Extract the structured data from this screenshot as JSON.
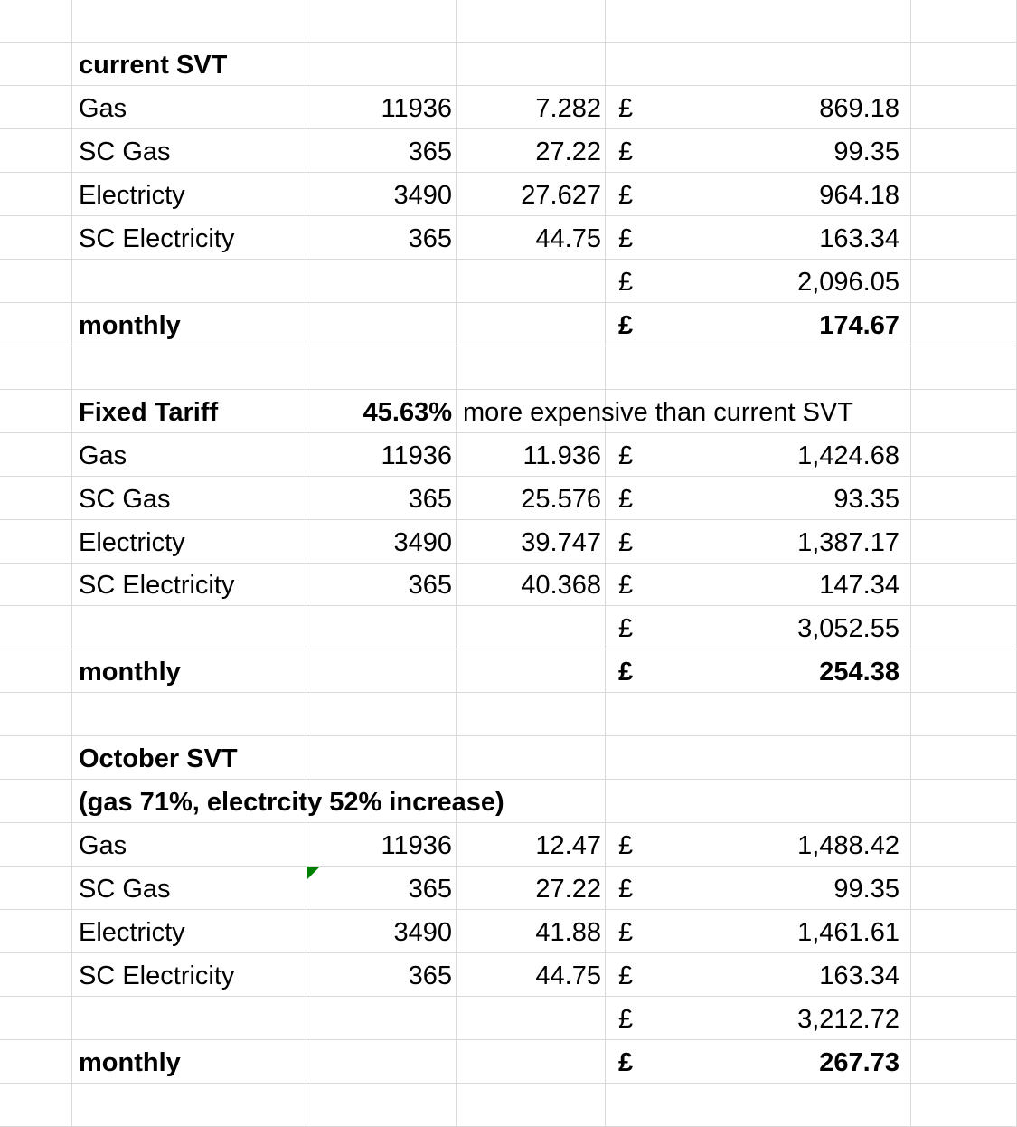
{
  "sheet": {
    "flag_color": "#008000",
    "rows": [
      {},
      {
        "label": "current SVT",
        "bold": true
      },
      {
        "label": "Gas",
        "qty": "11936",
        "rate": "7.282",
        "cur": "£",
        "amount": "869.18"
      },
      {
        "label": "SC Gas",
        "qty": "365",
        "rate": "27.22",
        "cur": "£",
        "amount": "99.35"
      },
      {
        "label": "Electricty",
        "qty": "3490",
        "rate": "27.627",
        "cur": "£",
        "amount": "964.18"
      },
      {
        "label": "SC Electricity",
        "qty": "365",
        "rate": "44.75",
        "cur": "£",
        "amount": "163.34"
      },
      {
        "cur": "£",
        "amount": "2,096.05"
      },
      {
        "label": "monthly",
        "cur": "£",
        "amount": "174.67",
        "bold": true
      },
      {},
      {
        "label": "Fixed Tariff",
        "bold": true,
        "qty": "45.63%",
        "note": "more expensive than current SVT"
      },
      {
        "label": "Gas",
        "qty": "11936",
        "rate": "11.936",
        "cur": "£",
        "amount": "1,424.68"
      },
      {
        "label": "SC Gas",
        "qty": "365",
        "rate": "25.576",
        "cur": "£",
        "amount": "93.35"
      },
      {
        "label": "Electricty",
        "qty": "3490",
        "rate": "39.747",
        "cur": "£",
        "amount": "1,387.17"
      },
      {
        "label": "SC Electricity",
        "qty": "365",
        "rate": "40.368",
        "cur": "£",
        "amount": "147.34"
      },
      {
        "cur": "£",
        "amount": "3,052.55"
      },
      {
        "label": "monthly",
        "cur": "£",
        "amount": "254.38",
        "bold": true
      },
      {},
      {
        "label": "October SVT",
        "bold": true
      },
      {
        "label": "(gas 71%, electrcity 52% increase)",
        "bold": true
      },
      {
        "label": "Gas",
        "qty": "11936",
        "rate": "12.47",
        "cur": "£",
        "amount": "1,488.42"
      },
      {
        "label": "SC Gas",
        "qty": "365",
        "rate": "27.22",
        "cur": "£",
        "amount": "99.35",
        "flag": true
      },
      {
        "label": "Electricty",
        "qty": "3490",
        "rate": "41.88",
        "cur": "£",
        "amount": "1,461.61"
      },
      {
        "label": "SC Electricity",
        "qty": "365",
        "rate": "44.75",
        "cur": "£",
        "amount": "163.34"
      },
      {
        "cur": "£",
        "amount": "3,212.72"
      },
      {
        "label": "monthly",
        "cur": "£",
        "amount": "267.73",
        "bold": true
      },
      {}
    ]
  }
}
